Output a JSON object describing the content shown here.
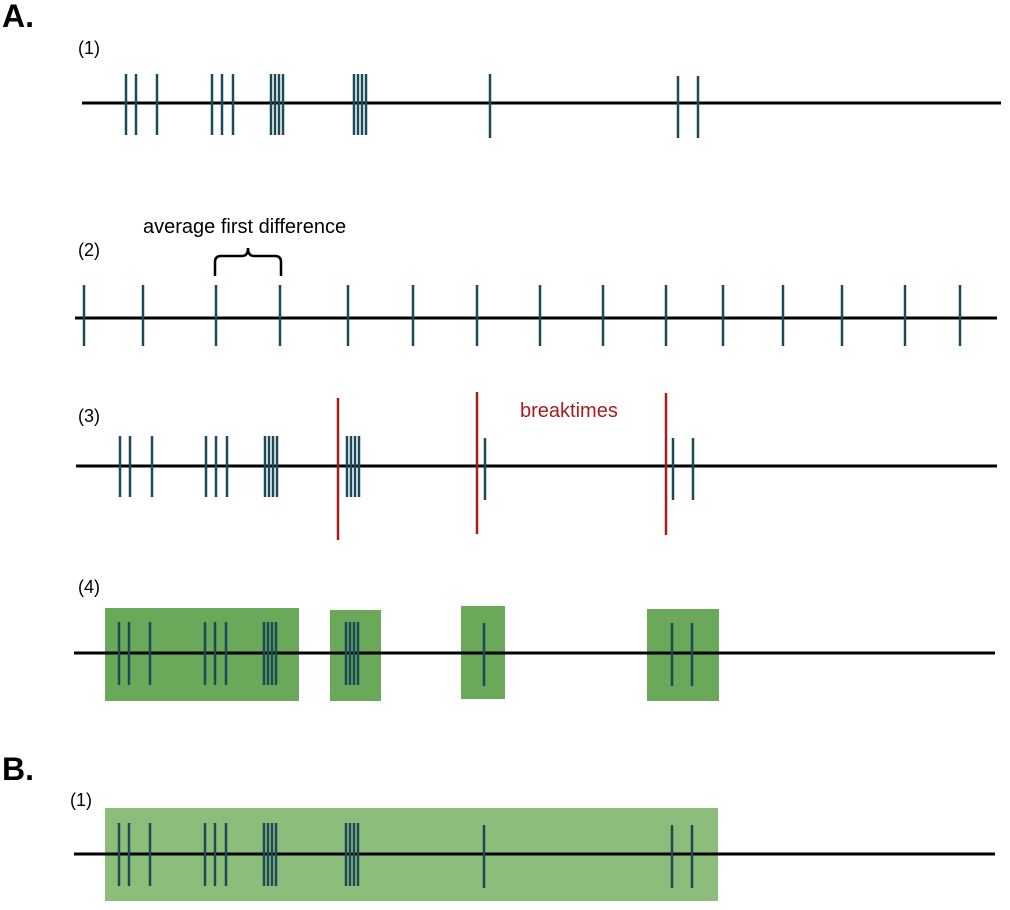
{
  "colors": {
    "spike": "#1d4a57",
    "breaktime": "#a31d1d",
    "burst_fill": "#6aa85a",
    "burst_fill_light": "#8dbd7a",
    "axis": "#000000"
  },
  "panel_a": {
    "label": "A.",
    "rows": [
      {
        "label": "(1)"
      },
      {
        "label": "(2)",
        "annotation": "average first difference"
      },
      {
        "label": "(3)",
        "annotation": "breaktimes"
      },
      {
        "label": "(4)"
      }
    ]
  },
  "panel_b": {
    "label": "B.",
    "rows": [
      {
        "label": "(1)"
      }
    ]
  }
}
